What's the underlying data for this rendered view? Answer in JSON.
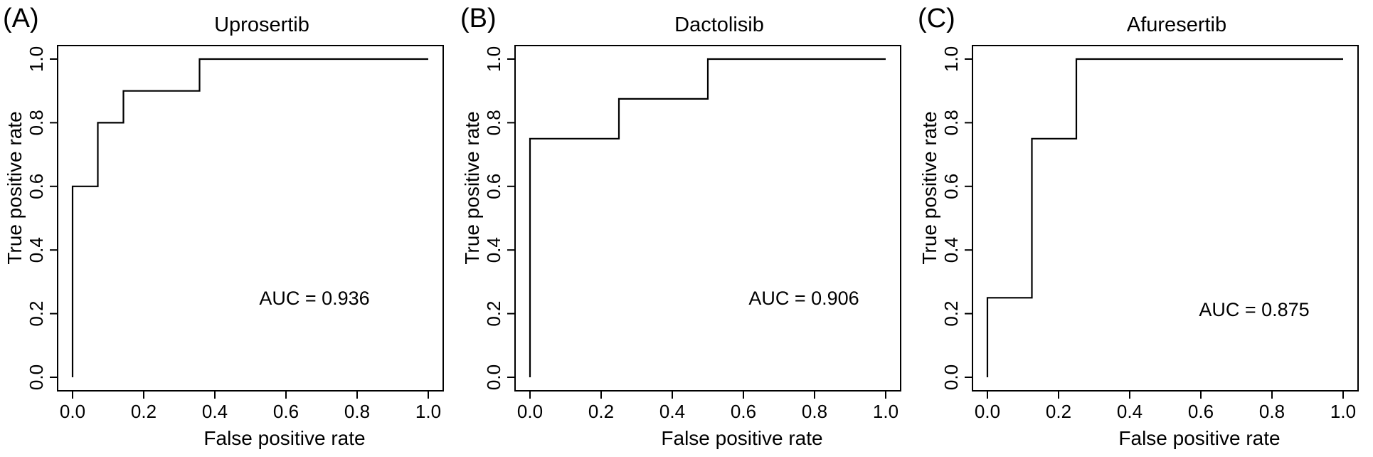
{
  "figure": {
    "background": "#ffffff",
    "line_color": "#000000",
    "text_color": "#000000"
  },
  "chart_data": [
    {
      "type": "line",
      "subtype": "roc-step-curve",
      "panel_label": "(A)",
      "title": "Uprosertib",
      "xlabel": "False positive rate",
      "ylabel": "True positive rate",
      "xlim": [
        0,
        1
      ],
      "ylim": [
        0,
        1
      ],
      "x_ticks": [
        "0.0",
        "0.2",
        "0.4",
        "0.6",
        "0.8",
        "1.0"
      ],
      "y_ticks": [
        "0.0",
        "0.2",
        "0.4",
        "0.6",
        "0.8",
        "1.0"
      ],
      "grid": false,
      "legend": "none",
      "auc": 0.936,
      "annotations": [
        {
          "text": "AUC = 0.936",
          "xy": [
            0.68,
            0.25
          ]
        }
      ],
      "series": [
        {
          "name": "ROC curve",
          "points": [
            [
              0,
              0
            ],
            [
              0,
              0.6
            ],
            [
              0.071,
              0.6
            ],
            [
              0.071,
              0.8
            ],
            [
              0.143,
              0.8
            ],
            [
              0.143,
              0.9
            ],
            [
              0.357,
              0.9
            ],
            [
              0.357,
              1
            ],
            [
              1,
              1
            ]
          ]
        }
      ]
    },
    {
      "type": "line",
      "subtype": "roc-step-curve",
      "panel_label": "(B)",
      "title": "Dactolisib",
      "xlabel": "False positive rate",
      "ylabel": "True positive rate",
      "xlim": [
        0,
        1
      ],
      "ylim": [
        0,
        1
      ],
      "x_ticks": [
        "0.0",
        "0.2",
        "0.4",
        "0.6",
        "0.8",
        "1.0"
      ],
      "y_ticks": [
        "0.0",
        "0.2",
        "0.4",
        "0.6",
        "0.8",
        "1.0"
      ],
      "grid": false,
      "legend": "none",
      "auc": 0.906,
      "annotations": [
        {
          "text": "AUC = 0.906",
          "xy": [
            0.77,
            0.25
          ]
        }
      ],
      "series": [
        {
          "name": "ROC curve",
          "points": [
            [
              0,
              0
            ],
            [
              0,
              0.75
            ],
            [
              0.25,
              0.75
            ],
            [
              0.25,
              0.875
            ],
            [
              0.5,
              0.875
            ],
            [
              0.5,
              1
            ],
            [
              1,
              1
            ]
          ]
        }
      ]
    },
    {
      "type": "line",
      "subtype": "roc-step-curve",
      "panel_label": "(C)",
      "title": "Afuresertib",
      "xlabel": "False positive rate",
      "ylabel": "True positive rate",
      "xlim": [
        0,
        1
      ],
      "ylim": [
        0,
        1
      ],
      "x_ticks": [
        "0.0",
        "0.2",
        "0.4",
        "0.6",
        "0.8",
        "1.0"
      ],
      "y_ticks": [
        "0.0",
        "0.2",
        "0.4",
        "0.6",
        "0.8",
        "1.0"
      ],
      "grid": false,
      "legend": "none",
      "auc": 0.875,
      "annotations": [
        {
          "text": "AUC = 0.875",
          "xy": [
            0.75,
            0.215
          ]
        }
      ],
      "series": [
        {
          "name": "ROC curve",
          "points": [
            [
              0,
              0
            ],
            [
              0,
              0.25
            ],
            [
              0.125,
              0.25
            ],
            [
              0.125,
              0.75
            ],
            [
              0.25,
              0.75
            ],
            [
              0.25,
              1
            ],
            [
              1,
              1
            ]
          ]
        }
      ]
    }
  ]
}
